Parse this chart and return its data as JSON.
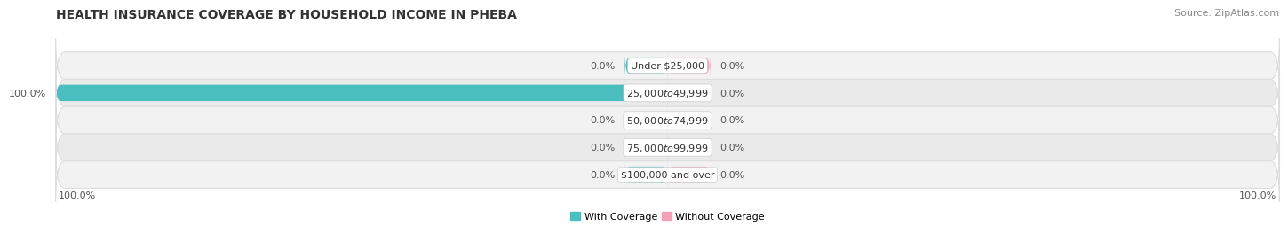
{
  "title": "HEALTH INSURANCE COVERAGE BY HOUSEHOLD INCOME IN PHEBA",
  "source": "Source: ZipAtlas.com",
  "categories": [
    "Under $25,000",
    "$25,000 to $49,999",
    "$50,000 to $74,999",
    "$75,000 to $99,999",
    "$100,000 and over"
  ],
  "with_coverage": [
    0.0,
    100.0,
    0.0,
    0.0,
    0.0
  ],
  "without_coverage": [
    0.0,
    0.0,
    0.0,
    0.0,
    0.0
  ],
  "color_with": "#4BBFBF",
  "color_without": "#F2A0B8",
  "bar_bg_color": "#F0F0F0",
  "bar_bg_edge": "#DDDDDD",
  "label_left_text": [
    "0.0%",
    "100.0%",
    "0.0%",
    "0.0%",
    "0.0%"
  ],
  "label_right_text": [
    "0.0%",
    "0.0%",
    "0.0%",
    "0.0%",
    "0.0%"
  ],
  "axis_label_left": "100.0%",
  "axis_label_right": "100.0%",
  "title_fontsize": 10,
  "source_fontsize": 8,
  "label_fontsize": 8,
  "category_fontsize": 8,
  "legend_fontsize": 8,
  "axis_tick_fontsize": 8,
  "background_color": "#FFFFFF",
  "bar_height": 0.6,
  "min_bar_width": 7.0,
  "row_bg_colors": [
    "#F2F2F2",
    "#EAEAEA",
    "#F2F2F2",
    "#EAEAEA",
    "#F2F2F2"
  ],
  "xlim": 100
}
